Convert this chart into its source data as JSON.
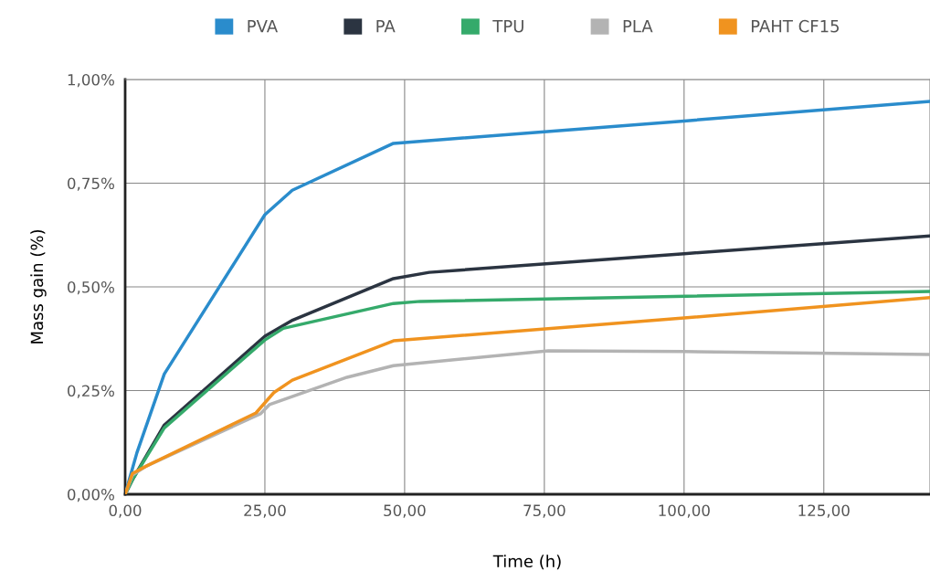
{
  "chart_data": {
    "type": "line",
    "xlabel": "Time (h)",
    "ylabel": "Mass gain (%)",
    "xlim": [
      0,
      144
    ],
    "ylim": [
      0,
      1.0
    ],
    "xticks": [
      {
        "value": 0,
        "label": "0,00"
      },
      {
        "value": 25,
        "label": "25,00"
      },
      {
        "value": 50,
        "label": "50,00"
      },
      {
        "value": 75,
        "label": "75,00"
      },
      {
        "value": 100,
        "label": "100,00"
      },
      {
        "value": 125,
        "label": "125,00"
      }
    ],
    "yticks": [
      {
        "value": 0,
        "label": "0,00%"
      },
      {
        "value": 0.25,
        "label": "0,25%"
      },
      {
        "value": 0.5,
        "label": "0,50%"
      },
      {
        "value": 0.75,
        "label": "0,75%"
      },
      {
        "value": 1.0,
        "label": "1,00%"
      }
    ],
    "grid": true,
    "legend": "top",
    "marker": "none",
    "line_style": "solid",
    "series": [
      {
        "name": "PVA",
        "color": "#2a8ccc",
        "x": [
          0,
          2.1,
          7,
          25,
          29.9,
          48,
          100,
          144
        ],
        "values": [
          0,
          0.1,
          0.29,
          0.674,
          0.733,
          0.846,
          0.9,
          0.947
        ]
      },
      {
        "name": "PA",
        "color": "#2b3441",
        "x": [
          0,
          1.3,
          7,
          25,
          30,
          48,
          54.4,
          100,
          144
        ],
        "values": [
          0,
          0.035,
          0.167,
          0.381,
          0.42,
          0.52,
          0.535,
          0.58,
          0.623
        ]
      },
      {
        "name": "TPU",
        "color": "#35aa6b",
        "x": [
          0,
          1.3,
          7,
          25,
          28.3,
          48,
          52.8,
          144
        ],
        "values": [
          0,
          0.035,
          0.16,
          0.372,
          0.4,
          0.46,
          0.465,
          0.489
        ]
      },
      {
        "name": "PLA",
        "color": "#b3b3b3",
        "x": [
          0,
          1.3,
          3.8,
          24.2,
          25.8,
          39.7,
          48,
          75.7,
          100,
          144
        ],
        "values": [
          0,
          0.046,
          0.068,
          0.194,
          0.216,
          0.282,
          0.31,
          0.346,
          0.344,
          0.337
        ]
      },
      {
        "name": "PAHT CF15",
        "color": "#f0931f",
        "x": [
          0,
          1.3,
          3.8,
          23.4,
          26.6,
          29.9,
          48,
          100,
          144
        ],
        "values": [
          0,
          0.05,
          0.068,
          0.196,
          0.245,
          0.275,
          0.37,
          0.425,
          0.474
        ]
      }
    ]
  }
}
